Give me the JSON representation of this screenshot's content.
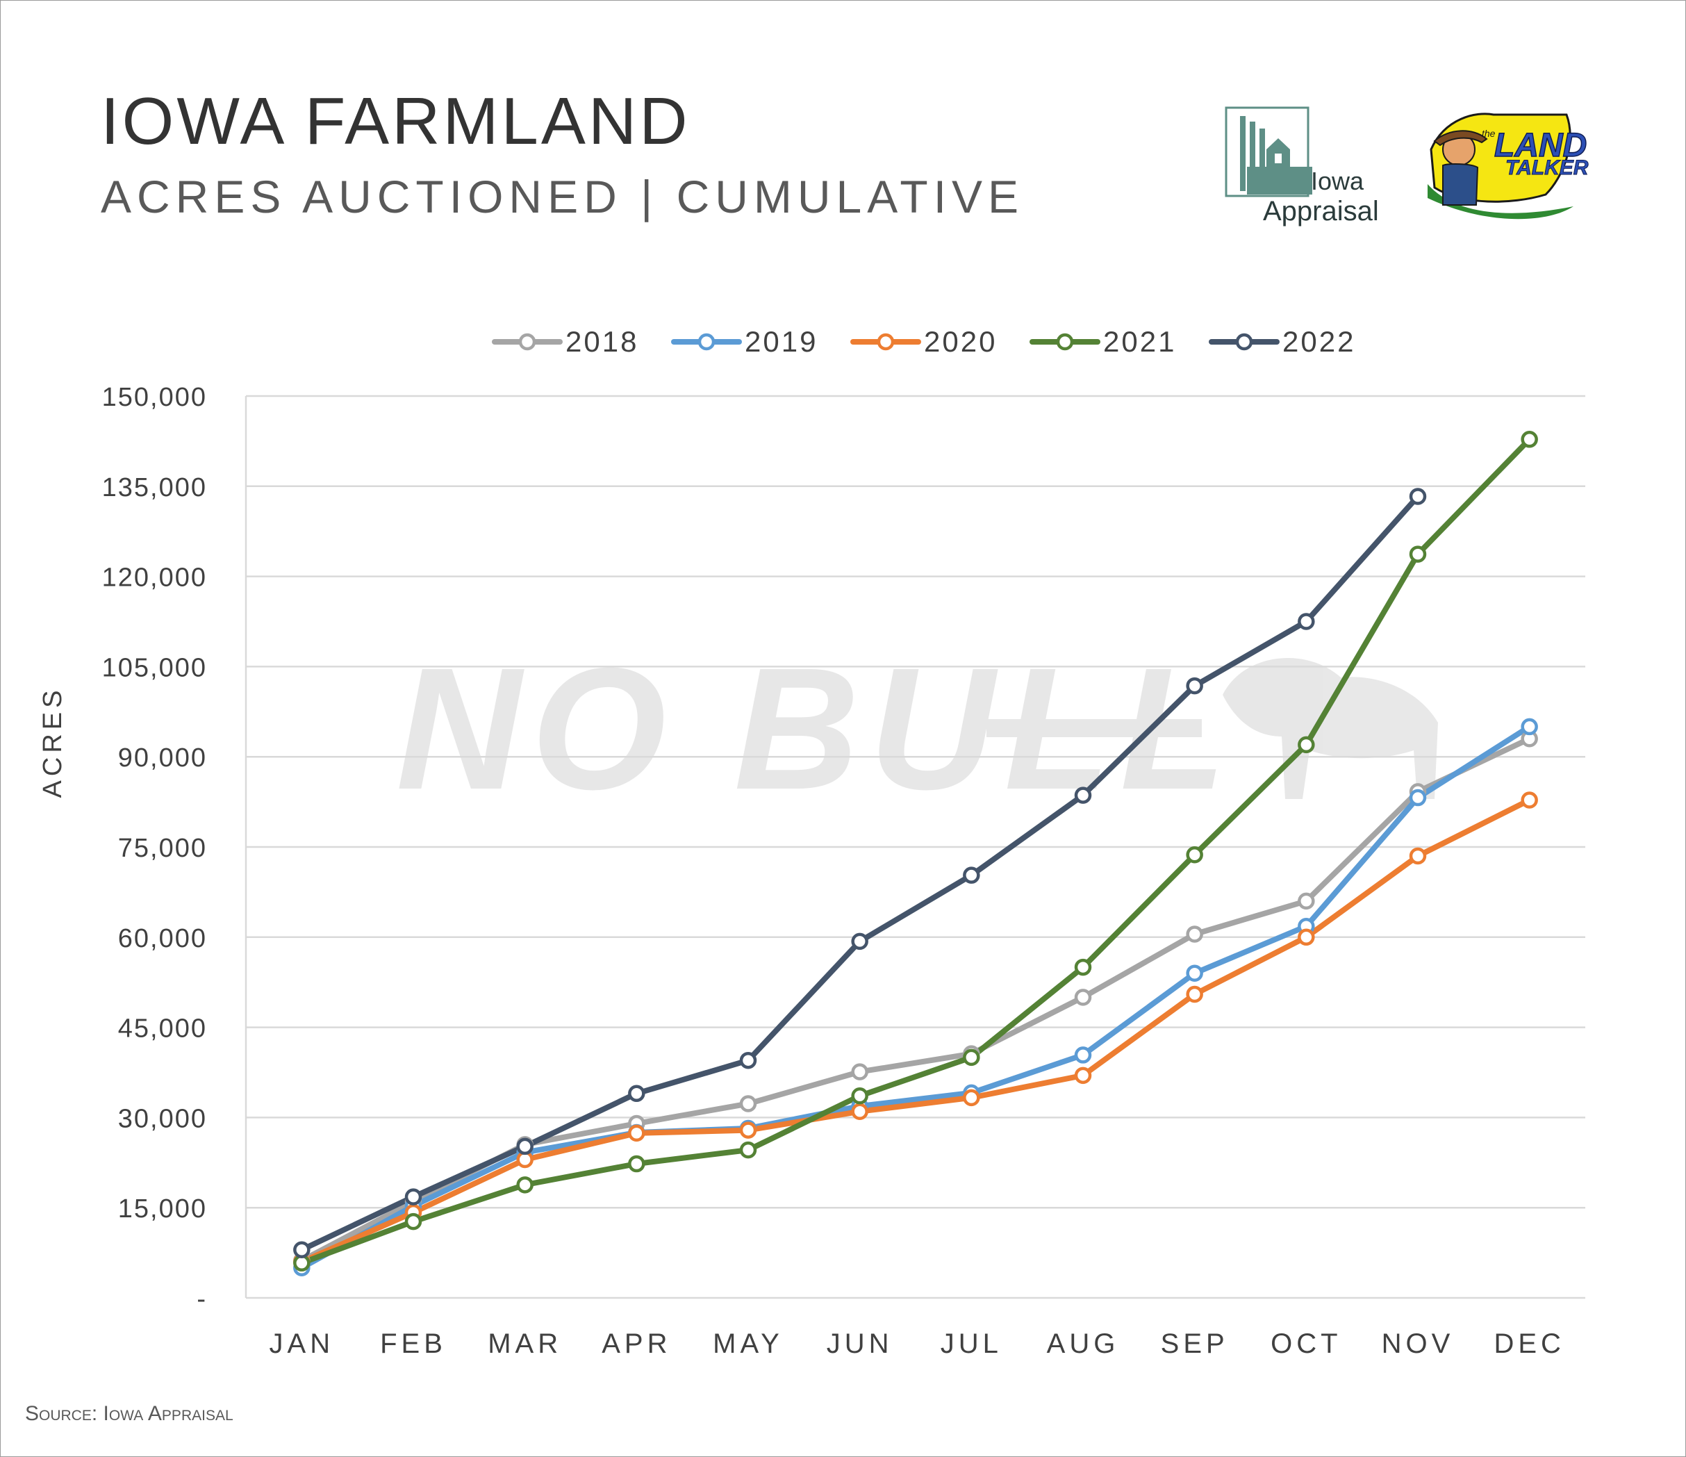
{
  "header": {
    "title": "IOWA FARMLAND",
    "subtitle": "ACRES AUCTIONED | CUMULATIVE"
  },
  "logos": {
    "iowa_appraisal_line1": "Iowa",
    "iowa_appraisal_line2": "Appraisal",
    "land_talker_small": "the",
    "land_talker_line1": "LAND",
    "land_talker_line2": "TALKER"
  },
  "watermark": "NO BULL",
  "footer": {
    "source": "Source: Iowa Appraisal"
  },
  "colors": {
    "2018": "#a5a5a5",
    "2019": "#5b9bd5",
    "2020": "#ed7d31",
    "2021": "#548235",
    "2022": "#44546a",
    "grid": "#d9d9d9",
    "text": "#404040"
  },
  "chart_data": {
    "type": "line",
    "title": "IOWA FARMLAND",
    "subtitle": "ACRES AUCTIONED | CUMULATIVE",
    "xlabel": "",
    "ylabel": "ACRES",
    "categories": [
      "JAN",
      "FEB",
      "MAR",
      "APR",
      "MAY",
      "JUN",
      "JUL",
      "AUG",
      "SEP",
      "OCT",
      "NOV",
      "DEC"
    ],
    "ylim": [
      0,
      150000
    ],
    "yticks": [
      0,
      15000,
      30000,
      45000,
      60000,
      75000,
      90000,
      105000,
      120000,
      135000,
      150000
    ],
    "ytick_labels": [
      "-",
      "15,000",
      "30,000",
      "45,000",
      "60,000",
      "75,000",
      "90,000",
      "105,000",
      "120,000",
      "135,000",
      "150,000"
    ],
    "grid": true,
    "legend_position": "top",
    "series": [
      {
        "name": "2018",
        "values": [
          6200,
          16000,
          25500,
          29000,
          32300,
          37600,
          40600,
          50000,
          60500,
          66000,
          84200,
          93000
        ]
      },
      {
        "name": "2019",
        "values": [
          5000,
          15300,
          24200,
          27500,
          28200,
          31900,
          34100,
          40400,
          54000,
          61800,
          83200,
          95000
        ]
      },
      {
        "name": "2020",
        "values": [
          6000,
          14200,
          23000,
          27400,
          27900,
          31000,
          33300,
          37000,
          50500,
          60000,
          73500,
          82800
        ]
      },
      {
        "name": "2021",
        "values": [
          5800,
          12700,
          18800,
          22300,
          24600,
          33600,
          40000,
          55000,
          73700,
          92000,
          123700,
          142800
        ]
      },
      {
        "name": "2022",
        "values": [
          8000,
          16800,
          25200,
          34000,
          39500,
          59300,
          70300,
          83600,
          101800,
          112500,
          133300,
          null
        ]
      }
    ]
  }
}
